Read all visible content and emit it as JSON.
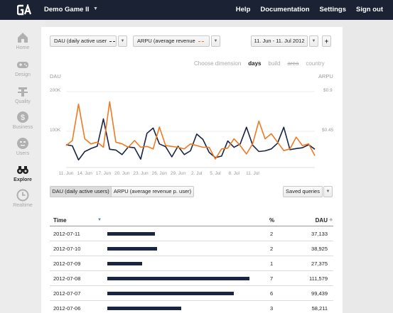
{
  "topbar": {
    "app_name": "Demo Game II",
    "nav": [
      "Help",
      "Documentation",
      "Settings",
      "Sign out"
    ]
  },
  "sidebar": {
    "items": [
      {
        "label": "Home",
        "icon": "home-icon",
        "active": false
      },
      {
        "label": "Design",
        "icon": "gamepad-icon",
        "active": false
      },
      {
        "label": "Quality",
        "icon": "bug-icon",
        "active": false
      },
      {
        "label": "Business",
        "icon": "dollar-icon",
        "active": false
      },
      {
        "label": "Users",
        "icon": "user-face-icon",
        "active": false
      },
      {
        "label": "Explore",
        "icon": "binoculars-icon",
        "active": true
      },
      {
        "label": "Realtime",
        "icon": "clock-icon",
        "active": false
      }
    ]
  },
  "controls": {
    "metric1": "DAU (daily active user",
    "metric2": "ARPU (average revenue",
    "date_range": "11. Jun - 11. Jul 2012",
    "add": "+"
  },
  "dimensions": {
    "label": "Choose dimension",
    "options": [
      "days",
      "build",
      "area",
      "country"
    ],
    "active": "days"
  },
  "chart_data": {
    "type": "line",
    "ylabel_left": "DAU",
    "ylabel_right": "ARPU",
    "left_ticks": [
      "200K",
      "100K"
    ],
    "right_ticks": [
      "$0.9",
      "$0.45"
    ],
    "x_ticks": [
      "11. Jun",
      "14. Jun",
      "17. Jun",
      "20. Jun",
      "23. Jun",
      "26. Jun",
      "29. Jun",
      "2. Jul",
      "5. Jul",
      "8. Jul",
      "11. Jul"
    ],
    "series": [
      {
        "name": "DAU (daily active users)",
        "color": "#1a2545",
        "axis": "left",
        "values": [
          60000,
          57000,
          20000,
          42000,
          50000,
          56000,
          128000,
          48000,
          46000,
          34000,
          54000,
          52000,
          22000,
          90000,
          104000,
          62000,
          55000,
          28000,
          56000,
          34000,
          44000,
          88000,
          74000,
          40000,
          26000,
          30000,
          70000,
          53000,
          62000,
          106000,
          59000,
          42000,
          44000,
          49000,
          64000,
          106000,
          47000,
          50000,
          52000,
          60000,
          48000
        ]
      },
      {
        "name": "ARPU (average revenue p. user)",
        "color": "#ef7a22",
        "axis": "right",
        "values": [
          0.26,
          0.32,
          0.75,
          0.34,
          0.28,
          0.3,
          0.24,
          0.78,
          0.3,
          0.28,
          0.24,
          0.32,
          0.24,
          0.25,
          0.22,
          0.48,
          0.26,
          0.25,
          0.24,
          0.22,
          0.28,
          0.26,
          0.24,
          0.24,
          0.1,
          0.22,
          0.23,
          0.34,
          0.26,
          0.16,
          0.28,
          0.55,
          0.34,
          0.4,
          0.3,
          0.2,
          0.22,
          0.36,
          0.26,
          0.28,
          0.14
        ]
      }
    ],
    "grid": true
  },
  "series_toggle": [
    "DAU (daily active users)",
    "ARPU (average revenue p. user)"
  ],
  "saved_queries": "Saved queries",
  "table": {
    "headers": {
      "time": "Time",
      "pct": "%",
      "dau": "DAU"
    },
    "max_value": 111579,
    "rows": [
      {
        "date": "2012-07-11",
        "pct": "2",
        "dau": "37,133",
        "value": 37133
      },
      {
        "date": "2012-07-10",
        "pct": "2",
        "dau": "38,925",
        "value": 38925
      },
      {
        "date": "2012-07-09",
        "pct": "1",
        "dau": "27,375",
        "value": 27375
      },
      {
        "date": "2012-07-08",
        "pct": "7",
        "dau": "111,579",
        "value": 111579
      },
      {
        "date": "2012-07-07",
        "pct": "6",
        "dau": "99,439",
        "value": 99439
      },
      {
        "date": "2012-07-06",
        "pct": "3",
        "dau": "58,211",
        "value": 58211
      }
    ]
  }
}
